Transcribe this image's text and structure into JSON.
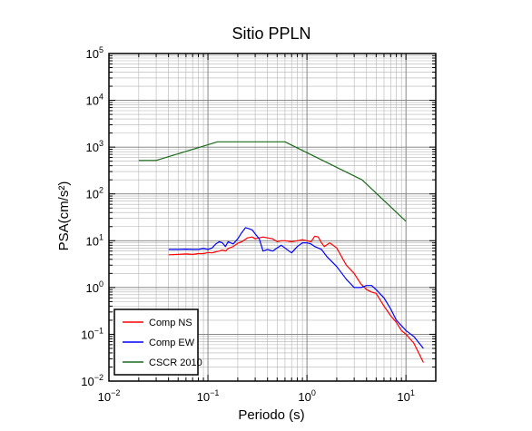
{
  "chart_data": {
    "type": "line",
    "title": "Sitio PPLN",
    "xlabel": "Periodo (s)",
    "ylabel": "PSA(cm/s²)",
    "x_scale": "log",
    "y_scale": "log",
    "xlim": [
      0.01,
      20
    ],
    "ylim": [
      0.01,
      100000
    ],
    "grid": true,
    "legend_position": "bottom-left",
    "x_tick_labels": [
      {
        "value": 0.01,
        "base": "10",
        "exp": "−2"
      },
      {
        "value": 0.1,
        "base": "10",
        "exp": "−1"
      },
      {
        "value": 1,
        "base": "10",
        "exp": "0"
      },
      {
        "value": 10,
        "base": "10",
        "exp": "1"
      }
    ],
    "y_tick_labels": [
      {
        "value": 0.01,
        "base": "10",
        "exp": "−2"
      },
      {
        "value": 0.1,
        "base": "10",
        "exp": "−1"
      },
      {
        "value": 1,
        "base": "10",
        "exp": "0"
      },
      {
        "value": 10,
        "base": "10",
        "exp": "1"
      },
      {
        "value": 100,
        "base": "10",
        "exp": "2"
      },
      {
        "value": 1000,
        "base": "10",
        "exp": "3"
      },
      {
        "value": 10000,
        "base": "10",
        "exp": "4"
      },
      {
        "value": 100000,
        "base": "10",
        "exp": "5"
      }
    ],
    "series": [
      {
        "name": "Comp NS",
        "color": "#ff0000",
        "x": [
          0.04,
          0.05,
          0.06,
          0.07,
          0.08,
          0.09,
          0.1,
          0.11,
          0.12,
          0.13,
          0.14,
          0.15,
          0.16,
          0.18,
          0.2,
          0.22,
          0.25,
          0.28,
          0.3,
          0.33,
          0.36,
          0.4,
          0.45,
          0.5,
          0.55,
          0.6,
          0.7,
          0.8,
          0.9,
          1.0,
          1.1,
          1.2,
          1.3,
          1.4,
          1.5,
          1.7,
          2.0,
          2.5,
          3.0,
          3.5,
          4.0,
          4.5,
          5.0,
          6.0,
          7.0,
          8.0,
          9.0,
          10.0,
          12.0,
          15.0
        ],
        "y": [
          5.0,
          5.1,
          5.2,
          5.1,
          5.3,
          5.3,
          5.6,
          5.5,
          5.8,
          6.0,
          6.3,
          6.0,
          6.8,
          7.5,
          8.8,
          9.5,
          11.5,
          12.0,
          11.0,
          11.5,
          12.0,
          11.5,
          11.0,
          9.5,
          10.0,
          10.0,
          9.5,
          10.0,
          10.5,
          10.0,
          9.5,
          12.5,
          12.0,
          9.0,
          7.5,
          9.0,
          7.0,
          3.0,
          2.0,
          1.2,
          0.9,
          0.8,
          0.75,
          0.4,
          0.25,
          0.18,
          0.12,
          0.1,
          0.065,
          0.025
        ]
      },
      {
        "name": "Comp EW",
        "color": "#0000ff",
        "x": [
          0.04,
          0.05,
          0.06,
          0.07,
          0.08,
          0.09,
          0.1,
          0.11,
          0.12,
          0.13,
          0.14,
          0.15,
          0.16,
          0.18,
          0.2,
          0.22,
          0.24,
          0.26,
          0.28,
          0.3,
          0.33,
          0.36,
          0.4,
          0.45,
          0.5,
          0.55,
          0.6,
          0.7,
          0.8,
          0.9,
          1.0,
          1.1,
          1.2,
          1.4,
          1.6,
          1.8,
          2.0,
          2.5,
          3.0,
          3.5,
          4.0,
          4.5,
          5.0,
          6.0,
          7.0,
          8.0,
          10.0,
          12.0,
          15.0
        ],
        "y": [
          6.5,
          6.5,
          6.6,
          6.5,
          6.5,
          6.8,
          6.5,
          7.0,
          8.5,
          9.5,
          9.0,
          7.5,
          9.5,
          8.5,
          11.0,
          15.0,
          19.0,
          18.0,
          17.0,
          14.0,
          11.0,
          6.0,
          6.5,
          6.0,
          7.0,
          8.0,
          7.0,
          5.5,
          7.5,
          9.0,
          9.0,
          8.5,
          7.5,
          6.5,
          4.5,
          3.5,
          2.8,
          1.5,
          1.0,
          1.0,
          1.1,
          1.1,
          0.9,
          0.6,
          0.35,
          0.2,
          0.12,
          0.09,
          0.05
        ]
      },
      {
        "name": "CSCR 2010",
        "color": "#1a6b1a",
        "x": [
          0.02,
          0.03,
          0.125,
          0.6,
          3.6,
          10.0
        ],
        "y": [
          520,
          520,
          1300,
          1300,
          200,
          26
        ]
      }
    ]
  }
}
